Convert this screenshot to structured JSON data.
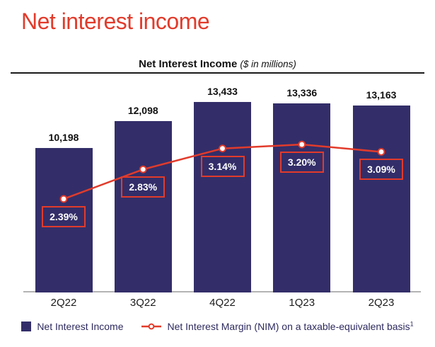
{
  "page": {
    "title": "Net interest income"
  },
  "chart": {
    "title": "Net Interest Income",
    "subtitle": "($ in millions)",
    "legend": [
      {
        "label": "Net Interest Income",
        "marker": "navy-square"
      },
      {
        "label": "Net Interest Margin (NIM) on a taxable-equivalent basis",
        "superscript": "1",
        "marker": "red-line-open-circle"
      }
    ]
  },
  "chart_data": {
    "type": "bar",
    "title": "Net Interest Income",
    "subtitle": "($ in millions)",
    "xlabel": "",
    "ylabel": "",
    "grid": false,
    "legend_position": "bottom",
    "categories": [
      "2Q22",
      "3Q22",
      "4Q22",
      "1Q23",
      "2Q23"
    ],
    "series": [
      {
        "name": "Net Interest Income",
        "type": "bar",
        "values": [
          10198,
          12098,
          13433,
          13336,
          13163
        ],
        "labels": [
          "10,198",
          "12,098",
          "13,433",
          "13,336",
          "13,163"
        ],
        "color": "#332e69",
        "unit": "$ in millions"
      },
      {
        "name": "Net Interest Margin (NIM) on a taxable-equivalent basis",
        "type": "line",
        "values": [
          2.39,
          2.83,
          3.14,
          3.2,
          3.09
        ],
        "labels": [
          "2.39%",
          "2.83%",
          "3.14%",
          "3.20%",
          "3.09%"
        ],
        "color": "#e23b2b",
        "marker": "open-circle",
        "unit": "%"
      }
    ]
  },
  "colors": {
    "accent_red": "#e23b2b",
    "bar_navy": "#332e69",
    "legend_text": "#2d2a5e",
    "axis_gray": "#b3b3b3",
    "text_dark": "#111111"
  }
}
